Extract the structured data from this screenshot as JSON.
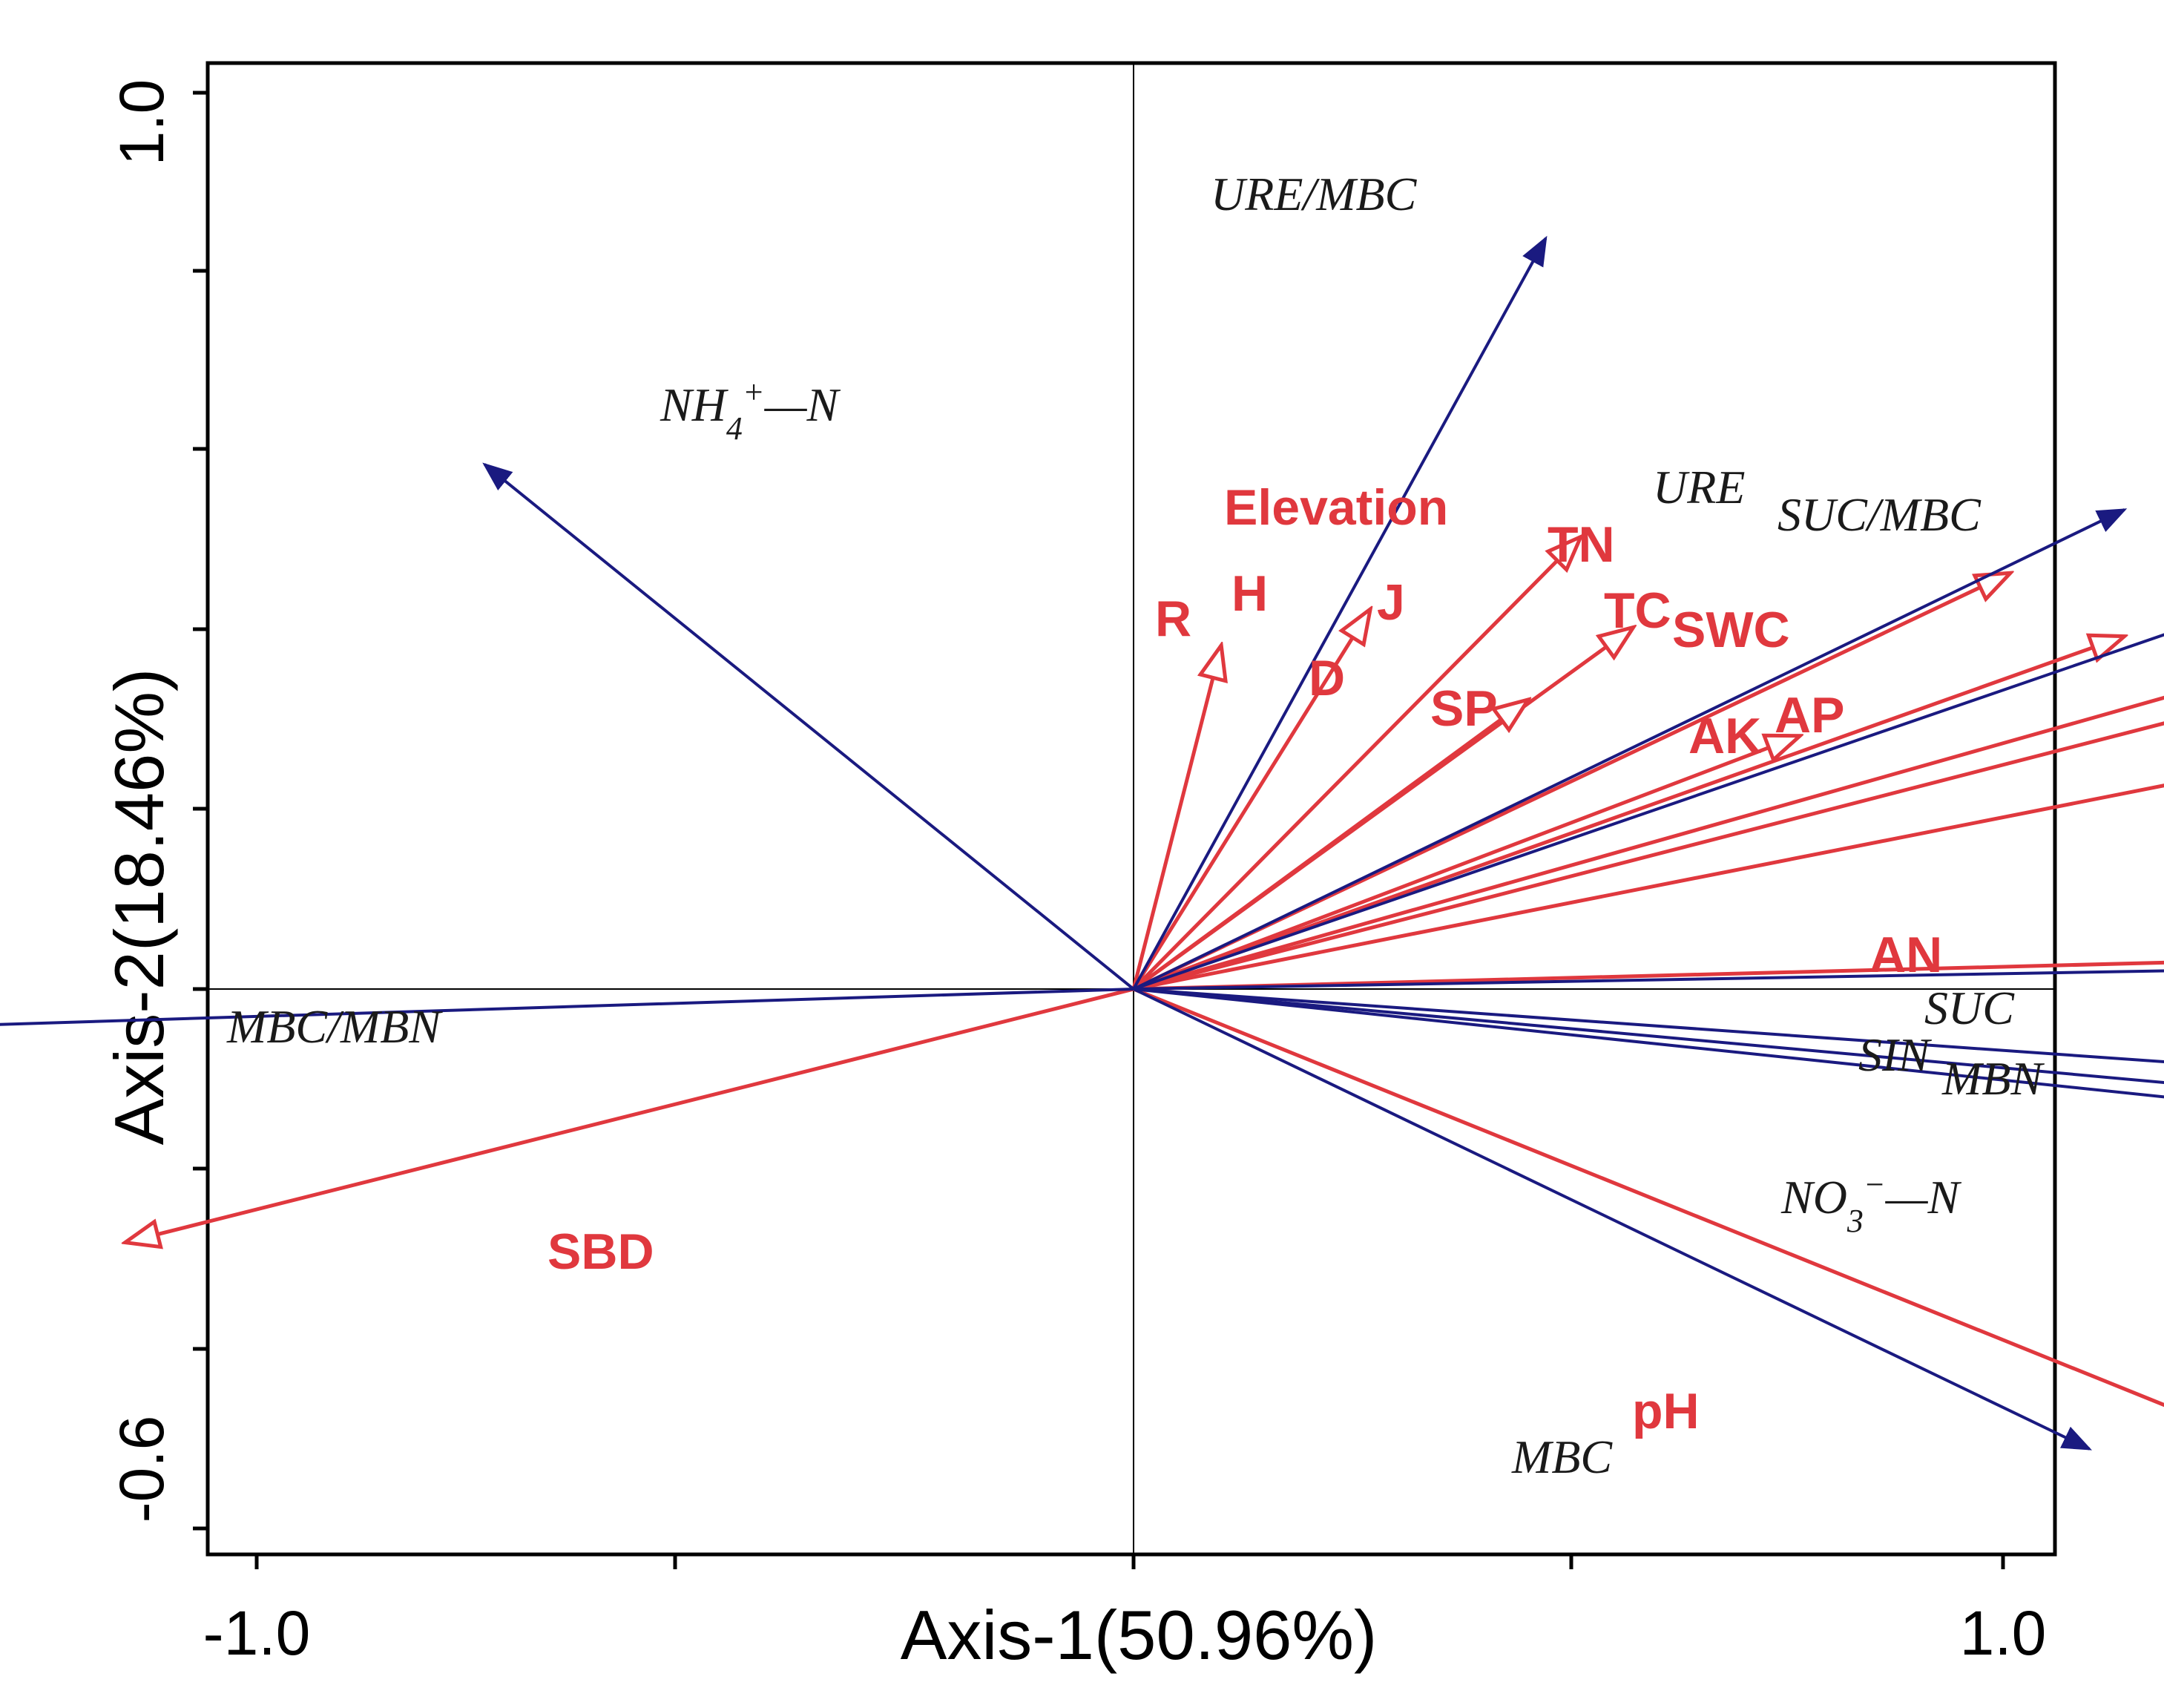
{
  "chart_data": {
    "type": "biplot",
    "xlabel": "Axis-1(50.96%)",
    "ylabel": "Axis-2(18.46%)",
    "xlim": [
      -1.0,
      1.0
    ],
    "ylim": [
      -0.6,
      1.0
    ],
    "x_tick_labels": [
      "-1.0",
      "1.0"
    ],
    "y_tick_labels": [
      "-0.6",
      "1.0"
    ],
    "colors": {
      "response": "#1a1a80",
      "environment": "#e0383e",
      "axes": "#000000"
    },
    "response_vectors": [
      {
        "id": "ure-mbc",
        "label": "URE/MBC",
        "x": 0.47,
        "y": 0.83
      },
      {
        "id": "nh4-n",
        "label": "NH4+—N",
        "x": -0.74,
        "y": 0.58
      },
      {
        "id": "ure",
        "label": "URE",
        "x": 1.13,
        "y": 0.53
      },
      {
        "id": "suc-mbc",
        "label": "SUC/MBC",
        "x": 1.44,
        "y": 0.48
      },
      {
        "id": "mbc-mbn",
        "label": "MBC/MBN",
        "x": -1.37,
        "y": -0.04
      },
      {
        "id": "suc",
        "label": "SUC",
        "x": 1.75,
        "y": 0.03
      },
      {
        "id": "sin",
        "label": "SIN",
        "x": 1.77,
        "y": -0.15
      },
      {
        "id": "mbn",
        "label": "MBN",
        "x": 1.82,
        "y": -0.12
      },
      {
        "id": "no3-n",
        "label": "NO3−—N",
        "x": 1.84,
        "y": -0.18
      },
      {
        "id": "mbc",
        "label": "MBC",
        "x": 1.09,
        "y": -0.49
      }
    ],
    "environment_vectors": [
      {
        "id": "elevation",
        "label": "Elevation",
        "x": 0.51,
        "y": 0.5
      },
      {
        "id": "r",
        "label": "R",
        "x": 0.1,
        "y": 0.38
      },
      {
        "id": "h",
        "label": "H",
        "x": 0.27,
        "y": 0.42
      },
      {
        "id": "j",
        "label": "J",
        "x": 0.57,
        "y": 0.4
      },
      {
        "id": "d",
        "label": "D",
        "x": 0.45,
        "y": 0.32
      },
      {
        "id": "tn",
        "label": "TN",
        "x": 1.0,
        "y": 0.46
      },
      {
        "id": "tc",
        "label": "TC",
        "x": 1.13,
        "y": 0.39
      },
      {
        "id": "sp",
        "label": "SP",
        "x": 0.76,
        "y": 0.28
      },
      {
        "id": "swc",
        "label": "SWC",
        "x": 1.35,
        "y": 0.37
      },
      {
        "id": "ak",
        "label": "AK",
        "x": 1.36,
        "y": 0.34
      },
      {
        "id": "ap",
        "label": "AP",
        "x": 1.41,
        "y": 0.27
      },
      {
        "id": "an",
        "label": "AN",
        "x": 1.61,
        "y": 0.04
      },
      {
        "id": "sbd",
        "label": "SBD",
        "x": -1.15,
        "y": -0.27
      },
      {
        "id": "ph",
        "label": "pH",
        "x": 1.22,
        "y": -0.46
      }
    ]
  }
}
